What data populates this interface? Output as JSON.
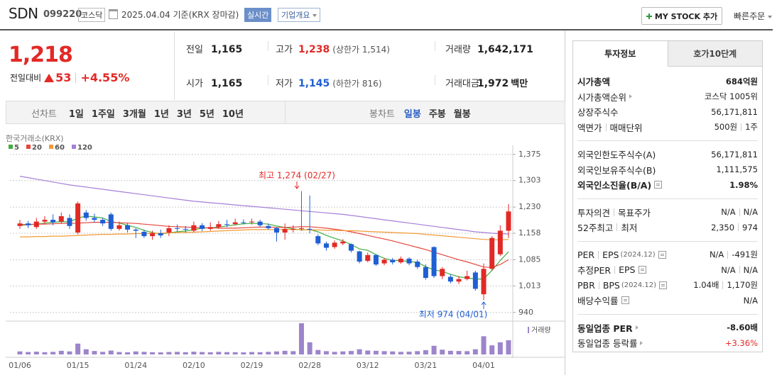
{
  "header": {
    "name": "SDN",
    "code": "099220",
    "market": "코스닥",
    "date": "2025.04.04 기준(KRX 장마감)",
    "realtime": "실시간",
    "overview": "기업개요",
    "mystock": "MY STOCK 추가",
    "quick_order": "빠른주문"
  },
  "price": {
    "current": "1,218",
    "change_label": "전일대비",
    "change": "53",
    "change_rate": "+4.55%",
    "color": "#e22926"
  },
  "quote": [
    [
      {
        "label": "전일",
        "value": "1,165"
      },
      {
        "label": "고가",
        "value": "1,238",
        "note": "(상한가 1,514)",
        "color": "#e22926"
      },
      {
        "label": "거래량",
        "value": "1,642,171"
      }
    ],
    [
      {
        "label": "시가",
        "value": "1,165"
      },
      {
        "label": "저가",
        "value": "1,145",
        "note": "(하한가 816)",
        "color": "#1f5fd4"
      },
      {
        "label": "거래대금",
        "value": "1,972",
        "unit": "백만"
      }
    ]
  ],
  "toolbar": {
    "line_label": "선차트",
    "line_periods": [
      "1일",
      "1주일",
      "3개월",
      "1년",
      "3년",
      "5년",
      "10년"
    ],
    "candle_label": "봉차트",
    "candle_periods": [
      "일봉",
      "주봉",
      "월봉"
    ],
    "candle_selected": 0
  },
  "chart_data": {
    "type": "candlestick",
    "source": "한국거래소(KRX)",
    "categories": [
      "01/06",
      null,
      null,
      null,
      null,
      null,
      null,
      "01/15",
      null,
      null,
      null,
      null,
      null,
      null,
      "01/24",
      null,
      null,
      null,
      null,
      null,
      null,
      "02/10",
      null,
      null,
      null,
      null,
      null,
      null,
      "02/19",
      null,
      null,
      null,
      null,
      null,
      null,
      "02/28",
      null,
      null,
      null,
      null,
      null,
      null,
      "03/12",
      null,
      null,
      null,
      null,
      null,
      null,
      "03/21",
      null,
      null,
      null,
      null,
      null,
      null,
      "04/01",
      null,
      null,
      null
    ],
    "open": [
      1178,
      1185,
      1175,
      1190,
      1195,
      1190,
      1200,
      1160,
      1215,
      1200,
      1195,
      1210,
      1170,
      1180,
      1168,
      1162,
      1150,
      1158,
      1160,
      1172,
      1170,
      1165,
      1180,
      1170,
      1175,
      1183,
      1183,
      1188,
      1188,
      1190,
      1178,
      1172,
      1160,
      1168,
      1170,
      1170,
      1150,
      1130,
      1120,
      1130,
      1128,
      1108,
      1082,
      1098,
      1075,
      1085,
      1078,
      1088,
      1080,
      1065,
      1120,
      1040,
      1038,
      1025,
      1032,
      1050,
      990,
      1060,
      1100,
      1165
    ],
    "high": [
      1195,
      1192,
      1200,
      1205,
      1210,
      1215,
      1210,
      1245,
      1222,
      1212,
      1200,
      1215,
      1190,
      1186,
      1172,
      1168,
      1165,
      1168,
      1180,
      1182,
      1178,
      1190,
      1186,
      1188,
      1192,
      1195,
      1198,
      1196,
      1198,
      1195,
      1185,
      1175,
      1185,
      1180,
      1274,
      1262,
      1155,
      1135,
      1138,
      1142,
      1130,
      1110,
      1105,
      1100,
      1090,
      1090,
      1094,
      1092,
      1085,
      1072,
      1122,
      1065,
      1045,
      1040,
      1055,
      1055,
      1075,
      1150,
      1180,
      1238
    ],
    "low": [
      1170,
      1172,
      1170,
      1182,
      1180,
      1185,
      1170,
      1155,
      1192,
      1188,
      1178,
      1165,
      1165,
      1160,
      1145,
      1145,
      1140,
      1145,
      1150,
      1162,
      1160,
      1160,
      1164,
      1165,
      1170,
      1175,
      1180,
      1182,
      1182,
      1175,
      1168,
      1135,
      1140,
      1160,
      1165,
      1158,
      1125,
      1110,
      1115,
      1125,
      1105,
      1075,
      1078,
      1068,
      1070,
      1072,
      1074,
      1070,
      1060,
      1030,
      1035,
      1032,
      1020,
      1018,
      1028,
      1000,
      974,
      1055,
      1095,
      1145
    ],
    "close": [
      1185,
      1180,
      1190,
      1195,
      1188,
      1205,
      1178,
      1240,
      1200,
      1195,
      1185,
      1170,
      1180,
      1168,
      1165,
      1150,
      1158,
      1152,
      1172,
      1170,
      1168,
      1180,
      1170,
      1175,
      1183,
      1182,
      1188,
      1186,
      1190,
      1180,
      1172,
      1160,
      1170,
      1170,
      1172,
      1168,
      1130,
      1118,
      1132,
      1135,
      1110,
      1080,
      1098,
      1072,
      1085,
      1078,
      1088,
      1075,
      1065,
      1035,
      1040,
      1060,
      1025,
      1032,
      1040,
      1005,
      1060,
      1145,
      1165,
      1218
    ],
    "up_color": "#e22926",
    "down_color": "#1f5fd4",
    "ma_series": [
      {
        "name": "5",
        "color": "#44ad3f",
        "values": [
          1180,
          1181,
          1183,
          1186,
          1188,
          1190,
          1189,
          1200,
          1205,
          1203,
          1200,
          1190,
          1186,
          1180,
          1174,
          1166,
          1160,
          1156,
          1159,
          1162,
          1164,
          1168,
          1172,
          1173,
          1175,
          1178,
          1181,
          1184,
          1185,
          1185,
          1183,
          1178,
          1174,
          1170,
          1167,
          1168,
          1162,
          1152,
          1144,
          1137,
          1127,
          1115,
          1111,
          1099,
          1089,
          1083,
          1083,
          1080,
          1078,
          1066,
          1057,
          1053,
          1045,
          1038,
          1035,
          1032,
          1032,
          1056,
          1083,
          1107
        ]
      },
      {
        "name": "20",
        "color": "#e8453c",
        "values": [
          1182,
          1182,
          1183,
          1183,
          1184,
          1185,
          1185,
          1186,
          1187,
          1188,
          1188,
          1188,
          1187,
          1186,
          1185,
          1183,
          1181,
          1179,
          1177,
          1176,
          1175,
          1174,
          1173,
          1173,
          1172,
          1172,
          1172,
          1173,
          1174,
          1175,
          1175,
          1174,
          1174,
          1175,
          1176,
          1176,
          1174,
          1172,
          1169,
          1166,
          1162,
          1157,
          1152,
          1147,
          1142,
          1137,
          1131,
          1125,
          1119,
          1113,
          1106,
          1099,
          1092,
          1085,
          1079,
          1072,
          1065,
          1064,
          1072,
          1085
        ]
      },
      {
        "name": "60",
        "color": "#f39a36",
        "values": [
          1148,
          1148,
          1149,
          1149,
          1150,
          1150,
          1151,
          1152,
          1153,
          1154,
          1155,
          1155,
          1156,
          1156,
          1157,
          1157,
          1158,
          1158,
          1159,
          1160,
          1160,
          1161,
          1162,
          1163,
          1164,
          1165,
          1166,
          1167,
          1168,
          1168,
          1168,
          1168,
          1168,
          1168,
          1168,
          1167,
          1167,
          1166,
          1166,
          1165,
          1165,
          1164,
          1163,
          1162,
          1161,
          1160,
          1159,
          1158,
          1157,
          1155,
          1153,
          1151,
          1149,
          1147,
          1145,
          1143,
          1141,
          1140,
          1140,
          1141
        ]
      },
      {
        "name": "120",
        "color": "#a67fd8",
        "values": [
          1315,
          1311,
          1307,
          1303,
          1299,
          1295,
          1291,
          1288,
          1285,
          1282,
          1279,
          1276,
          1273,
          1270,
          1267,
          1264,
          1261,
          1258,
          1255,
          1252,
          1249,
          1246,
          1244,
          1242,
          1240,
          1238,
          1236,
          1234,
          1232,
          1230,
          1228,
          1226,
          1224,
          1222,
          1220,
          1218,
          1216,
          1214,
          1212,
          1210,
          1207,
          1204,
          1201,
          1198,
          1195,
          1192,
          1189,
          1186,
          1183,
          1180,
          1177,
          1174,
          1171,
          1168,
          1165,
          1162,
          1160,
          1158,
          1157,
          1156
        ]
      }
    ],
    "volume": {
      "name": "거래량",
      "color": "#9d85cc",
      "values": [
        350000,
        280000,
        320000,
        260000,
        300000,
        420000,
        350000,
        1250000,
        600000,
        400000,
        300000,
        450000,
        280000,
        250000,
        350000,
        300000,
        260000,
        240000,
        280000,
        300000,
        260000,
        320000,
        280000,
        250000,
        300000,
        270000,
        260000,
        240000,
        280000,
        260000,
        300000,
        350000,
        420000,
        380000,
        3600000,
        1400000,
        520000,
        380000,
        300000,
        350000,
        400000,
        600000,
        450000,
        420000,
        380000,
        350000,
        300000,
        320000,
        380000,
        500000,
        1000000,
        550000,
        420000,
        400000,
        380000,
        600000,
        2100000,
        1050000,
        1400000,
        1642171
      ]
    },
    "annotations": [
      {
        "text": "최고 1,274 (02/27)",
        "color": "#e22926"
      },
      {
        "text": "최저 974 (04/01)",
        "color": "#1f5fd4"
      }
    ],
    "ylim": [
      920,
      1400
    ],
    "yticks": [
      {
        "value": 1375,
        "label": "1,375"
      },
      {
        "value": 1303,
        "label": "1,303"
      },
      {
        "value": 1230,
        "label": "1,230"
      },
      {
        "value": 1158,
        "label": "1,158"
      },
      {
        "value": 1085,
        "label": "1,085"
      },
      {
        "value": 1013,
        "label": "1,013"
      },
      940
    ],
    "grid": true
  },
  "invest_panel": {
    "tabs": [
      "투자정보",
      "호가10단계"
    ],
    "selected_tab": 0,
    "sections": [
      [
        {
          "label": [
            "시가총액"
          ],
          "value": [
            "684억원"
          ],
          "bold": true
        },
        {
          "label": [
            "시가총액순위"
          ],
          "value": [
            "코스닥 1005위"
          ],
          "icon": "arrow"
        },
        {
          "label": [
            "상장주식수"
          ],
          "value": [
            "56,171,811"
          ]
        },
        {
          "label": [
            "액면가",
            "매매단위"
          ],
          "value": [
            "500원",
            "1주"
          ]
        }
      ],
      [
        {
          "label": [
            "외국인한도주식수(A)"
          ],
          "value": [
            "56,171,811"
          ]
        },
        {
          "label": [
            "외국인보유주식수(B)"
          ],
          "value": [
            "1,111,575"
          ]
        },
        {
          "label": [
            "외국인소진율(B/A)"
          ],
          "value": [
            "1.98%"
          ],
          "bold": true,
          "icon": "info"
        }
      ],
      [
        {
          "label": [
            "투자의견",
            "목표주가"
          ],
          "value": [
            "N/A",
            "N/A"
          ]
        },
        {
          "label": [
            "52주최고",
            "최저"
          ],
          "value": [
            "2,350",
            "974"
          ]
        }
      ],
      [
        {
          "label": [
            "PER",
            "EPS"
          ],
          "note": "(2024.12)",
          "value": [
            "N/A",
            "-491원"
          ],
          "icon": "info"
        },
        {
          "label": [
            "추정PER",
            "EPS"
          ],
          "value": [
            "N/A",
            "N/A"
          ],
          "icon": "info"
        },
        {
          "label": [
            "PBR",
            "BPS"
          ],
          "note": "(2024.12)",
          "value": [
            "1.04배",
            "1,170원"
          ],
          "icon": "info"
        },
        {
          "label": [
            "배당수익률"
          ],
          "value": [
            "N/A"
          ],
          "icon": "info"
        }
      ],
      [
        {
          "label": [
            "동일업종 PER"
          ],
          "value": [
            "-8.60배"
          ],
          "bold": true,
          "icon": "arrow"
        },
        {
          "label": [
            "동일업종 등락률"
          ],
          "value": [
            "+3.36%"
          ],
          "color": "#e22926",
          "icon": "arrow"
        }
      ]
    ]
  }
}
